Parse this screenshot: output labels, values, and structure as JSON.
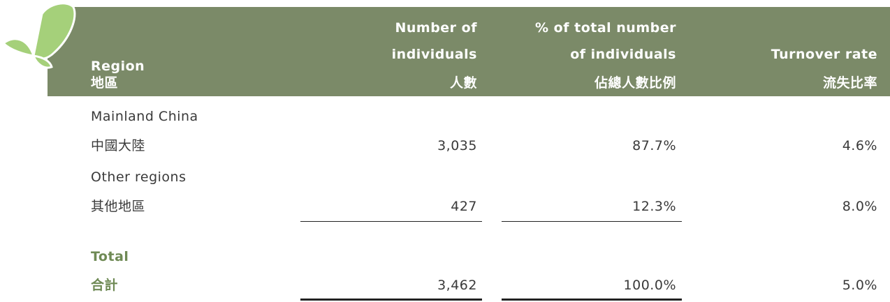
{
  "table": {
    "header": [
      [
        "Region",
        "地區"
      ],
      [
        "Number of",
        "individuals",
        "人數"
      ],
      [
        "% of total number",
        "of individuals",
        "佔總人數比例"
      ],
      [
        "Turnover rate",
        "流失比率"
      ]
    ],
    "rows": [
      {
        "label": [
          "Mainland China",
          "中國大陸"
        ],
        "cells": [
          "3,035",
          "87.7%",
          "4.6%"
        ]
      },
      {
        "label": [
          "Other regions",
          "其他地區"
        ],
        "cells": [
          "427",
          "12.3%",
          "8.0%"
        ]
      }
    ],
    "total": {
      "label": [
        "Total",
        "合計"
      ],
      "cells": [
        "3,462",
        "100.0%",
        "5.0%"
      ]
    }
  }
}
